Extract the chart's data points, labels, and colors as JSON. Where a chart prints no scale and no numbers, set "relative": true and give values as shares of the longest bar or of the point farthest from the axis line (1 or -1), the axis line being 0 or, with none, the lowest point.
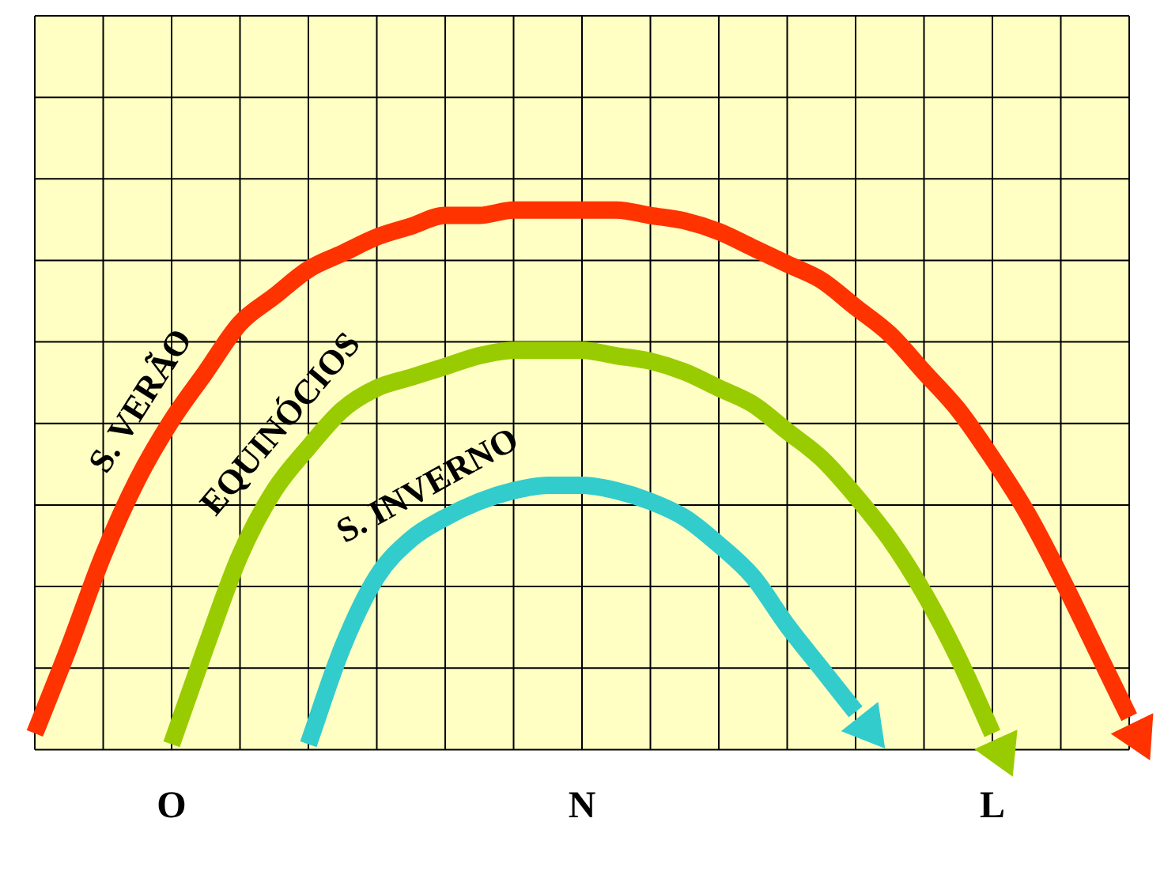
{
  "chart_data": {
    "type": "line",
    "relative": true,
    "grid": true,
    "marker": "none",
    "line_style": "solid",
    "categories": [
      null,
      null,
      null,
      null,
      "O",
      null,
      null,
      null,
      null,
      null,
      null,
      null,
      null,
      null,
      null,
      null,
      "N",
      null,
      null,
      null,
      null,
      null,
      null,
      null,
      null,
      null,
      null,
      null,
      "L",
      null,
      null,
      null,
      null
    ],
    "series": [
      {
        "name": "S. VERÃO",
        "color": "#ff3300",
        "values": [
          0.03,
          0.19,
          0.36,
          0.5,
          0.61,
          0.7,
          0.79,
          0.84,
          0.89,
          0.92,
          0.95,
          0.97,
          0.99,
          0.99,
          1,
          1,
          1,
          1,
          0.99,
          0.98,
          0.96,
          0.93,
          0.9,
          0.87,
          0.82,
          0.77,
          0.7,
          0.63,
          0.54,
          0.44,
          0.32,
          0.19,
          0.06
        ]
      },
      {
        "name": "EQUINÓCIOS",
        "color": "#99cc00",
        "values": [
          null,
          null,
          null,
          null,
          0.01,
          0.19,
          0.36,
          0.48,
          0.56,
          0.63,
          0.67,
          0.69,
          0.71,
          0.73,
          0.74,
          0.74,
          0.74,
          0.73,
          0.72,
          0.7,
          0.67,
          0.64,
          0.59,
          0.54,
          0.47,
          0.39,
          0.29,
          0.17,
          0.03,
          null,
          null,
          null,
          null
        ]
      },
      {
        "name": "S. INVERNO",
        "color": "#33cccc",
        "values": [
          null,
          null,
          null,
          null,
          null,
          null,
          null,
          null,
          0.01,
          0.19,
          0.32,
          0.39,
          0.43,
          0.46,
          0.48,
          0.49,
          0.49,
          0.48,
          0.46,
          0.43,
          0.38,
          0.32,
          0.23,
          0.15,
          0.07,
          null,
          null,
          null,
          null,
          null,
          null,
          null,
          null
        ]
      }
    ]
  }
}
